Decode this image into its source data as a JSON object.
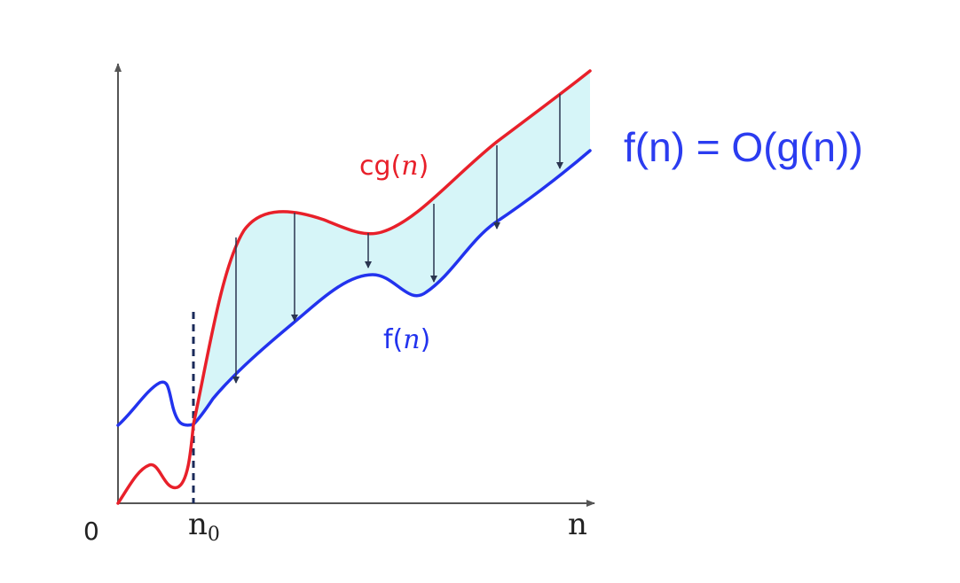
{
  "diagram": {
    "origin_label": "0",
    "n0_label_main": "n",
    "n0_label_sub": "0",
    "x_axis_label": "n",
    "upper_curve": {
      "label_prefix": "cg(",
      "label_var": "n",
      "label_suffix": ")",
      "color": "#e8202a"
    },
    "lower_curve": {
      "label_prefix": "f(",
      "label_var": "n",
      "label_suffix": ")",
      "color": "#2233ee"
    },
    "region_fill": "#d6f5f8",
    "axis_color": "#555555",
    "dashed_line_color": "#1a2a5a",
    "arrow_color": "#2a3550",
    "equation": "f(n) = O(g(n))",
    "equation_color": "#2b3cf0"
  }
}
